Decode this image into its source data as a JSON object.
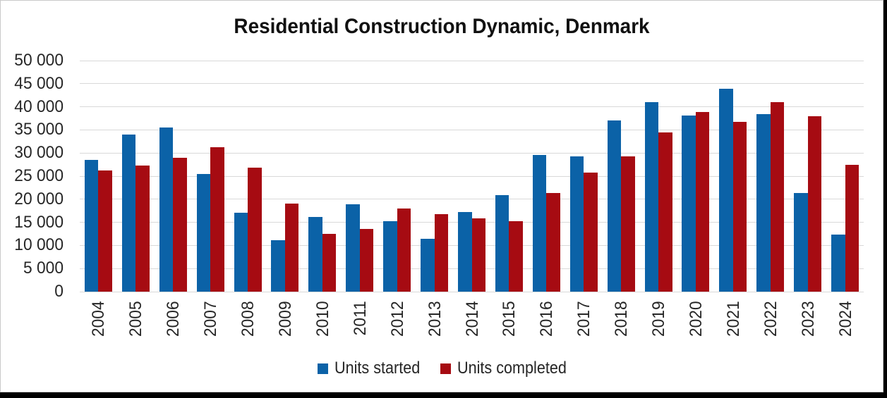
{
  "title": "Residential Construction Dynamic, Denmark",
  "colors": {
    "started": "#0b62a7",
    "completed": "#a60b12",
    "gridline": "#d9d9d9",
    "frame_border": "#000000"
  },
  "legend": {
    "items": [
      {
        "label": "Units started",
        "color": "#0b62a7"
      },
      {
        "label": "Units completed",
        "color": "#a60b12"
      }
    ]
  },
  "chart_data": {
    "type": "bar",
    "title": "Residential Construction Dynamic, Denmark",
    "categories": [
      "2004",
      "2005",
      "2006",
      "2007",
      "2008",
      "2009",
      "2010",
      "2011",
      "2012",
      "2013",
      "2014",
      "2015",
      "2016",
      "2017",
      "2018",
      "2019",
      "2020",
      "2021",
      "2022",
      "2023",
      "2024"
    ],
    "series": [
      {
        "name": "Units started",
        "color": "#0b62a7",
        "values": [
          28500,
          34000,
          35500,
          25500,
          17000,
          11100,
          16200,
          18900,
          15300,
          11500,
          17200,
          20900,
          29600,
          29300,
          37000,
          41000,
          38100,
          43900,
          38400,
          21300,
          12400
        ]
      },
      {
        "name": "Units completed",
        "color": "#a60b12",
        "values": [
          26200,
          27300,
          29000,
          31200,
          26800,
          19100,
          12500,
          13600,
          18000,
          16700,
          15800,
          15300,
          21300,
          25700,
          29300,
          34400,
          38900,
          36800,
          41000,
          37900,
          27500
        ]
      }
    ],
    "xlabel": "",
    "ylabel": "",
    "ylim": [
      0,
      50000
    ],
    "ytick_step": 5000,
    "ytick_labels": [
      "0",
      "5 000",
      "10 000",
      "15 000",
      "20 000",
      "25 000",
      "30 000",
      "35 000",
      "40 000",
      "45 000",
      "50 000"
    ],
    "grid": true,
    "legend_position": "bottom"
  }
}
